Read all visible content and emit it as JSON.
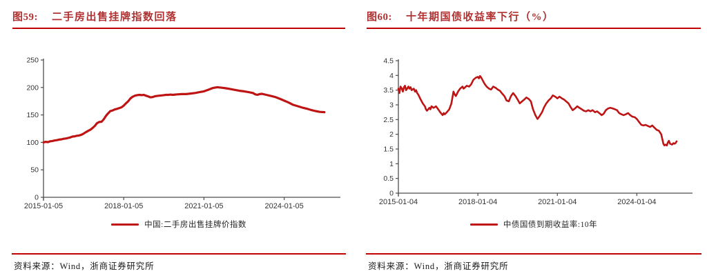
{
  "colors": {
    "title_red": "#B03131",
    "rule_red": "#C00000",
    "line_red": "#BE1414",
    "axis_line": "#4d4d4d",
    "axis_text": "#333333"
  },
  "figures": [
    {
      "fig_label": "图59:",
      "title": "二手房出售挂牌指数回落",
      "source": "资料来源：Wind，浙商证券研究所"
    },
    {
      "fig_label": "图60:",
      "title": "十年期国债收益率下行（%）",
      "source": "资料来源：Wind，浙商证券研究所"
    }
  ],
  "chart_data": [
    {
      "type": "line",
      "title": "二手房出售挂牌指数回落",
      "xlabel": "",
      "ylabel": "",
      "grid": false,
      "legend_position": "bottom",
      "ylim": [
        0,
        250
      ],
      "yticks": [
        0,
        50,
        100,
        150,
        200,
        250
      ],
      "xlim_years": [
        2015.0,
        2026.1
      ],
      "xticks": [
        {
          "year": 2015.0,
          "label": "2015-01-05"
        },
        {
          "year": 2018.0,
          "label": "2018-01-05"
        },
        {
          "year": 2021.0,
          "label": "2021-01-05"
        },
        {
          "year": 2024.0,
          "label": "2024-01-05"
        }
      ],
      "series": [
        {
          "name": "中国:二手房出售挂牌价指数",
          "color": "#BE1414",
          "points": [
            [
              2015.0,
              100
            ],
            [
              2015.08,
              101
            ],
            [
              2015.17,
              100.5
            ],
            [
              2015.25,
              102
            ],
            [
              2015.33,
              102.5
            ],
            [
              2015.42,
              103.5
            ],
            [
              2015.5,
              104
            ],
            [
              2015.58,
              105
            ],
            [
              2015.67,
              105.5
            ],
            [
              2015.75,
              106.5
            ],
            [
              2015.83,
              107
            ],
            [
              2015.92,
              108
            ],
            [
              2016.0,
              109
            ],
            [
              2016.08,
              110.5
            ],
            [
              2016.17,
              111
            ],
            [
              2016.25,
              112
            ],
            [
              2016.33,
              112.5
            ],
            [
              2016.42,
              114
            ],
            [
              2016.5,
              116
            ],
            [
              2016.58,
              118.5
            ],
            [
              2016.67,
              121
            ],
            [
              2016.75,
              123
            ],
            [
              2016.83,
              126
            ],
            [
              2016.92,
              130
            ],
            [
              2017.0,
              135
            ],
            [
              2017.08,
              137
            ],
            [
              2017.17,
              137.5
            ],
            [
              2017.25,
              142
            ],
            [
              2017.33,
              148
            ],
            [
              2017.42,
              153
            ],
            [
              2017.5,
              157
            ],
            [
              2017.58,
              158
            ],
            [
              2017.67,
              160
            ],
            [
              2017.75,
              161
            ],
            [
              2017.83,
              162.5
            ],
            [
              2017.92,
              164
            ],
            [
              2018.0,
              167
            ],
            [
              2018.08,
              171
            ],
            [
              2018.17,
              175
            ],
            [
              2018.25,
              180
            ],
            [
              2018.33,
              183
            ],
            [
              2018.42,
              185
            ],
            [
              2018.5,
              186
            ],
            [
              2018.58,
              186.5
            ],
            [
              2018.67,
              186
            ],
            [
              2018.75,
              186.5
            ],
            [
              2018.83,
              185
            ],
            [
              2018.92,
              183.5
            ],
            [
              2019.0,
              182
            ],
            [
              2019.08,
              182.5
            ],
            [
              2019.17,
              184
            ],
            [
              2019.25,
              184.5
            ],
            [
              2019.33,
              185
            ],
            [
              2019.42,
              185.5
            ],
            [
              2019.5,
              186
            ],
            [
              2019.58,
              186.5
            ],
            [
              2019.67,
              186.5
            ],
            [
              2019.75,
              187
            ],
            [
              2019.83,
              186.5
            ],
            [
              2019.92,
              187
            ],
            [
              2020.0,
              187.5
            ],
            [
              2020.17,
              188
            ],
            [
              2020.33,
              188
            ],
            [
              2020.5,
              189
            ],
            [
              2020.67,
              190
            ],
            [
              2020.83,
              191.5
            ],
            [
              2021.0,
              193
            ],
            [
              2021.17,
              196
            ],
            [
              2021.33,
              199
            ],
            [
              2021.5,
              200.5
            ],
            [
              2021.58,
              200
            ],
            [
              2021.67,
              199.5
            ],
            [
              2021.83,
              198.5
            ],
            [
              2022.0,
              197
            ],
            [
              2022.17,
              195.5
            ],
            [
              2022.33,
              194
            ],
            [
              2022.5,
              193
            ],
            [
              2022.67,
              191.5
            ],
            [
              2022.83,
              190
            ],
            [
              2022.92,
              187.5
            ],
            [
              2023.0,
              186.5
            ],
            [
              2023.08,
              188
            ],
            [
              2023.17,
              188.5
            ],
            [
              2023.33,
              186.5
            ],
            [
              2023.5,
              184.5
            ],
            [
              2023.67,
              182.5
            ],
            [
              2023.83,
              179.5
            ],
            [
              2024.0,
              176
            ],
            [
              2024.17,
              172.5
            ],
            [
              2024.33,
              168.5
            ],
            [
              2024.5,
              166
            ],
            [
              2024.67,
              163.5
            ],
            [
              2024.83,
              161.5
            ],
            [
              2025.0,
              159
            ],
            [
              2025.17,
              157
            ],
            [
              2025.33,
              155.5
            ],
            [
              2025.5,
              155
            ]
          ]
        }
      ]
    },
    {
      "type": "line",
      "title": "十年期国债收益率下行（%）",
      "xlabel": "",
      "ylabel": "",
      "grid": false,
      "legend_position": "bottom",
      "ylim": [
        0,
        4.5
      ],
      "yticks": [
        0,
        0.5,
        1,
        1.5,
        2,
        2.5,
        3,
        3.5,
        4,
        4.5
      ],
      "xlim_years": [
        2015.0,
        2026.1
      ],
      "xticks": [
        {
          "year": 2015.0,
          "label": "2015-01-04"
        },
        {
          "year": 2018.0,
          "label": "2018-01-04"
        },
        {
          "year": 2021.0,
          "label": "2021-01-04"
        },
        {
          "year": 2024.0,
          "label": "2024-01-04"
        }
      ],
      "series": [
        {
          "name": "中债国债到期收益率:10年",
          "color": "#BE1414",
          "points": [
            [
              2015.0,
              3.55
            ],
            [
              2015.04,
              3.4
            ],
            [
              2015.08,
              3.62
            ],
            [
              2015.13,
              3.55
            ],
            [
              2015.17,
              3.45
            ],
            [
              2015.21,
              3.6
            ],
            [
              2015.25,
              3.65
            ],
            [
              2015.29,
              3.5
            ],
            [
              2015.33,
              3.55
            ],
            [
              2015.38,
              3.62
            ],
            [
              2015.42,
              3.55
            ],
            [
              2015.46,
              3.6
            ],
            [
              2015.5,
              3.5
            ],
            [
              2015.58,
              3.55
            ],
            [
              2015.63,
              3.45
            ],
            [
              2015.67,
              3.5
            ],
            [
              2015.71,
              3.4
            ],
            [
              2015.75,
              3.35
            ],
            [
              2015.83,
              3.2
            ],
            [
              2015.92,
              3.05
            ],
            [
              2016.0,
              2.95
            ],
            [
              2016.04,
              2.85
            ],
            [
              2016.08,
              2.8
            ],
            [
              2016.17,
              2.9
            ],
            [
              2016.21,
              2.85
            ],
            [
              2016.25,
              2.95
            ],
            [
              2016.33,
              2.9
            ],
            [
              2016.42,
              2.95
            ],
            [
              2016.5,
              2.85
            ],
            [
              2016.58,
              2.75
            ],
            [
              2016.67,
              2.65
            ],
            [
              2016.71,
              2.72
            ],
            [
              2016.75,
              2.68
            ],
            [
              2016.83,
              2.75
            ],
            [
              2016.92,
              2.85
            ],
            [
              2017.0,
              3.05
            ],
            [
              2017.04,
              3.25
            ],
            [
              2017.08,
              3.45
            ],
            [
              2017.13,
              3.35
            ],
            [
              2017.17,
              3.3
            ],
            [
              2017.25,
              3.45
            ],
            [
              2017.33,
              3.55
            ],
            [
              2017.42,
              3.62
            ],
            [
              2017.46,
              3.55
            ],
            [
              2017.5,
              3.58
            ],
            [
              2017.58,
              3.65
            ],
            [
              2017.67,
              3.62
            ],
            [
              2017.75,
              3.7
            ],
            [
              2017.83,
              3.85
            ],
            [
              2017.92,
              3.92
            ],
            [
              2018.0,
              3.95
            ],
            [
              2018.04,
              3.9
            ],
            [
              2018.08,
              3.98
            ],
            [
              2018.13,
              3.92
            ],
            [
              2018.17,
              3.85
            ],
            [
              2018.25,
              3.72
            ],
            [
              2018.33,
              3.62
            ],
            [
              2018.42,
              3.55
            ],
            [
              2018.5,
              3.52
            ],
            [
              2018.58,
              3.62
            ],
            [
              2018.67,
              3.58
            ],
            [
              2018.75,
              3.52
            ],
            [
              2018.83,
              3.48
            ],
            [
              2018.92,
              3.38
            ],
            [
              2019.0,
              3.3
            ],
            [
              2019.08,
              3.15
            ],
            [
              2019.17,
              3.12
            ],
            [
              2019.25,
              3.3
            ],
            [
              2019.33,
              3.4
            ],
            [
              2019.42,
              3.3
            ],
            [
              2019.5,
              3.18
            ],
            [
              2019.58,
              3.05
            ],
            [
              2019.67,
              3.12
            ],
            [
              2019.75,
              3.18
            ],
            [
              2019.83,
              3.25
            ],
            [
              2019.92,
              3.2
            ],
            [
              2020.0,
              3.12
            ],
            [
              2020.08,
              2.85
            ],
            [
              2020.17,
              2.65
            ],
            [
              2020.25,
              2.52
            ],
            [
              2020.33,
              2.62
            ],
            [
              2020.42,
              2.75
            ],
            [
              2020.5,
              2.92
            ],
            [
              2020.58,
              3.05
            ],
            [
              2020.67,
              3.15
            ],
            [
              2020.75,
              3.22
            ],
            [
              2020.83,
              3.32
            ],
            [
              2020.92,
              3.28
            ],
            [
              2021.0,
              3.22
            ],
            [
              2021.08,
              3.28
            ],
            [
              2021.17,
              3.22
            ],
            [
              2021.25,
              3.18
            ],
            [
              2021.33,
              3.12
            ],
            [
              2021.42,
              3.05
            ],
            [
              2021.5,
              2.92
            ],
            [
              2021.58,
              2.82
            ],
            [
              2021.67,
              2.88
            ],
            [
              2021.75,
              2.95
            ],
            [
              2021.83,
              2.9
            ],
            [
              2021.92,
              2.85
            ],
            [
              2022.0,
              2.8
            ],
            [
              2022.08,
              2.78
            ],
            [
              2022.17,
              2.82
            ],
            [
              2022.25,
              2.78
            ],
            [
              2022.33,
              2.82
            ],
            [
              2022.42,
              2.75
            ],
            [
              2022.5,
              2.78
            ],
            [
              2022.58,
              2.72
            ],
            [
              2022.67,
              2.65
            ],
            [
              2022.75,
              2.7
            ],
            [
              2022.83,
              2.82
            ],
            [
              2022.92,
              2.88
            ],
            [
              2023.0,
              2.9
            ],
            [
              2023.08,
              2.88
            ],
            [
              2023.17,
              2.85
            ],
            [
              2023.25,
              2.82
            ],
            [
              2023.33,
              2.72
            ],
            [
              2023.42,
              2.68
            ],
            [
              2023.5,
              2.65
            ],
            [
              2023.58,
              2.68
            ],
            [
              2023.67,
              2.72
            ],
            [
              2023.75,
              2.65
            ],
            [
              2023.83,
              2.6
            ],
            [
              2023.92,
              2.58
            ],
            [
              2024.0,
              2.52
            ],
            [
              2024.08,
              2.42
            ],
            [
              2024.17,
              2.32
            ],
            [
              2024.25,
              2.3
            ],
            [
              2024.33,
              2.32
            ],
            [
              2024.42,
              2.28
            ],
            [
              2024.5,
              2.25
            ],
            [
              2024.58,
              2.3
            ],
            [
              2024.67,
              2.22
            ],
            [
              2024.75,
              2.15
            ],
            [
              2024.83,
              2.12
            ],
            [
              2024.92,
              2.0
            ],
            [
              2025.0,
              1.68
            ],
            [
              2025.04,
              1.62
            ],
            [
              2025.08,
              1.65
            ],
            [
              2025.13,
              1.62
            ],
            [
              2025.17,
              1.72
            ],
            [
              2025.21,
              1.78
            ],
            [
              2025.25,
              1.68
            ],
            [
              2025.33,
              1.65
            ],
            [
              2025.38,
              1.7
            ],
            [
              2025.42,
              1.68
            ],
            [
              2025.46,
              1.7
            ],
            [
              2025.5,
              1.76
            ]
          ]
        }
      ]
    }
  ]
}
